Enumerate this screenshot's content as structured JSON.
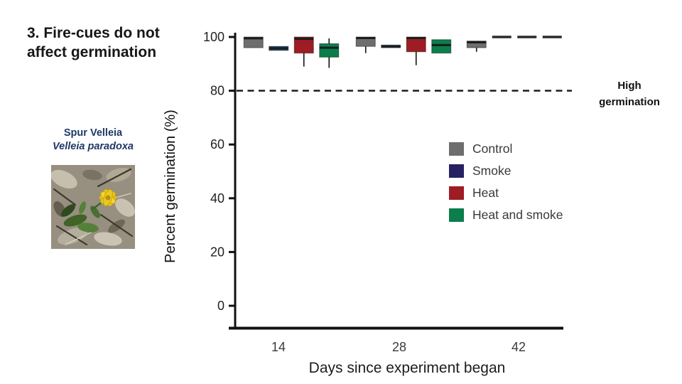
{
  "slide": {
    "title": "3. Fire-cues do not affect germination",
    "species": {
      "common_name": "Spur Velleia",
      "latin_name": "Velleia paradoxa"
    }
  },
  "chart_data": {
    "type": "boxplot",
    "title": "",
    "xlabel": "Days since experiment began",
    "ylabel": "Percent germination (%)",
    "ylim": [
      0,
      100
    ],
    "yticks": [
      0,
      20,
      40,
      60,
      80,
      100
    ],
    "xticks": [
      "14",
      "28",
      "42"
    ],
    "grid": false,
    "legend_position": "center-right",
    "reference_line": {
      "value": 80,
      "style": "dashed",
      "color": "#111111",
      "label": "High germination"
    },
    "series": [
      {
        "name": "Control",
        "color": "#6e6e6e"
      },
      {
        "name": "Smoke",
        "color": "#262262",
        "box_color": "#1b4a72"
      },
      {
        "name": "Heat",
        "color": "#9e1c24"
      },
      {
        "name": "Heat and smoke",
        "color": "#0b7e4b"
      }
    ],
    "groups": [
      {
        "day": "14",
        "boxes": [
          {
            "series": "Control",
            "whisker_low": 96,
            "q1": 96,
            "median": 99.5,
            "q3": 100,
            "whisker_high": 100
          },
          {
            "series": "Smoke",
            "whisker_low": 95,
            "q1": 95,
            "median": 95.8,
            "q3": 96.5,
            "whisker_high": 96.5
          },
          {
            "series": "Heat",
            "whisker_low": 89,
            "q1": 94,
            "median": 99.3,
            "q3": 100,
            "whisker_high": 100
          },
          {
            "series": "Heat and smoke",
            "whisker_low": 88.5,
            "q1": 92.5,
            "median": 96,
            "q3": 97.5,
            "whisker_high": 99.5
          }
        ]
      },
      {
        "day": "28",
        "boxes": [
          {
            "series": "Control",
            "whisker_low": 94,
            "q1": 96.5,
            "median": 99.6,
            "q3": 100,
            "whisker_high": 100
          },
          {
            "series": "Smoke",
            "whisker_low": 96,
            "q1": 96,
            "median": 96.5,
            "q3": 97,
            "whisker_high": 97
          },
          {
            "series": "Heat",
            "whisker_low": 89.5,
            "q1": 94.5,
            "median": 99.6,
            "q3": 100,
            "whisker_high": 100
          },
          {
            "series": "Heat and smoke",
            "whisker_low": 94,
            "q1": 94,
            "median": 97,
            "q3": 99,
            "whisker_high": 99
          }
        ]
      },
      {
        "day": "42",
        "boxes": [
          {
            "series": "Control",
            "whisker_low": 94.5,
            "q1": 96,
            "median": 98,
            "q3": 98.5,
            "whisker_high": 98.5
          },
          {
            "series": "Smoke",
            "whisker_low": 100,
            "q1": 100,
            "median": 100,
            "q3": 100,
            "whisker_high": 100
          },
          {
            "series": "Heat",
            "whisker_low": 100,
            "q1": 100,
            "median": 100,
            "q3": 100,
            "whisker_high": 100
          },
          {
            "series": "Heat and smoke",
            "whisker_low": 100,
            "q1": 100,
            "median": 100,
            "q3": 100,
            "whisker_high": 100
          }
        ]
      }
    ]
  }
}
